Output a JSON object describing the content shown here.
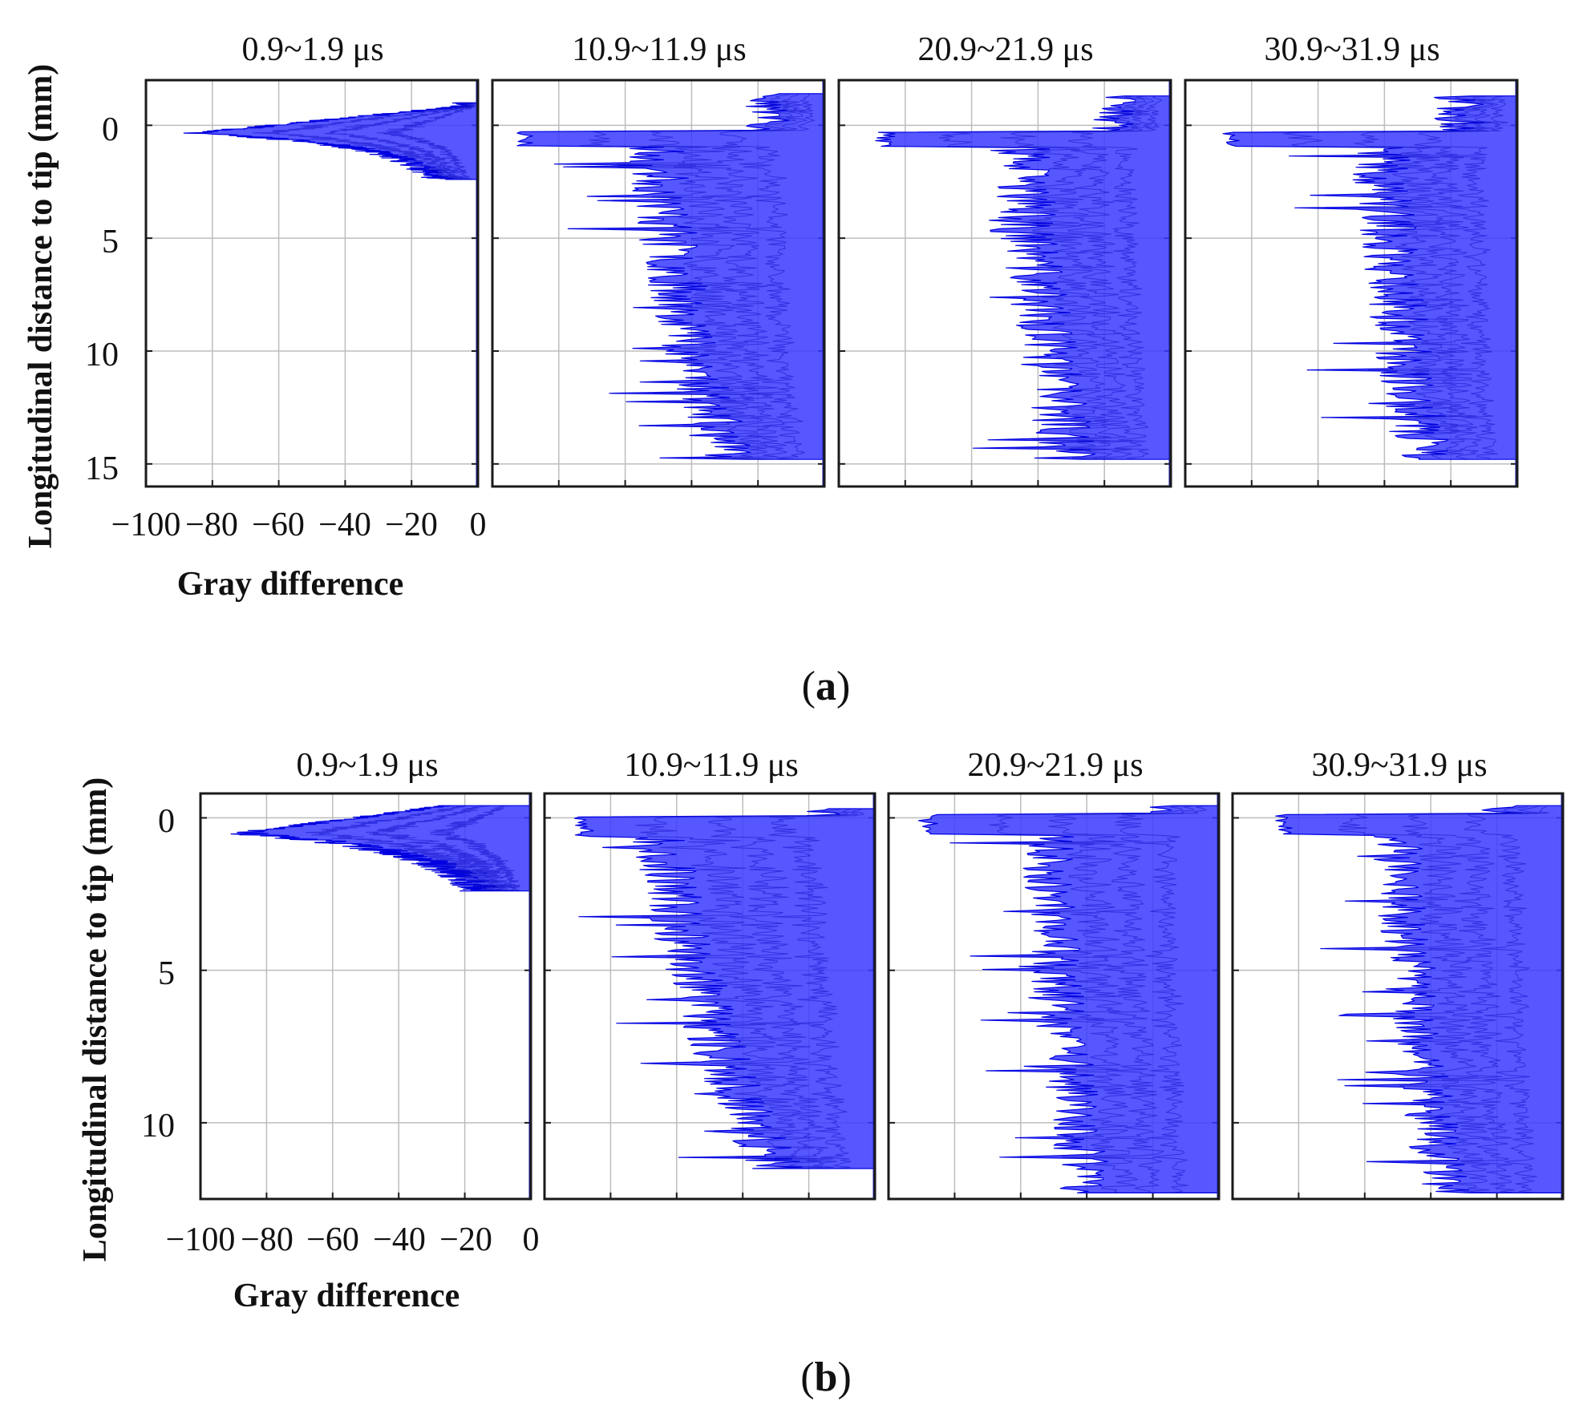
{
  "chart_data": [
    {
      "panel_label": "a",
      "type": "area",
      "orientation": "horizontal-profile",
      "xlabel": "Gray difference",
      "ylabel": "Longitudinal distance to tip (mm)",
      "xlim": [
        -100,
        0
      ],
      "ylim": [
        16,
        -2
      ],
      "x_ticks": [
        -100,
        -80,
        -60,
        -40,
        -20,
        0
      ],
      "x_tick_labels": [
        "−100",
        "−80",
        "−60",
        "−40",
        "−20",
        "0"
      ],
      "y_ticks": [
        0,
        5,
        10,
        15
      ],
      "y_tick_labels": [
        "0",
        "5",
        "10",
        "15"
      ],
      "series": [
        {
          "name": "0.9~1.9 μs",
          "extent_mm": [
            -1.0,
            2.4
          ],
          "peak_mm": 0.35,
          "peak_value": -85,
          "body_value": -24,
          "body_spread": 10,
          "far_value": -18,
          "taper": 1,
          "seed": 11
        },
        {
          "name": "10.9~11.9 μs",
          "extent_mm": [
            -1.4,
            14.8
          ],
          "peak_mm": 0.6,
          "peak_value": -90,
          "body_value": -52,
          "body_spread": 18,
          "far_value": -30,
          "taper": 0,
          "seed": 23
        },
        {
          "name": "20.9~21.9 μs",
          "extent_mm": [
            -1.3,
            14.8
          ],
          "peak_mm": 0.6,
          "peak_value": -86,
          "body_value": -46,
          "body_spread": 18,
          "far_value": -30,
          "taper": 0,
          "seed": 37
        },
        {
          "name": "30.9~31.9 μs",
          "extent_mm": [
            -1.3,
            14.8
          ],
          "peak_mm": 0.6,
          "peak_value": -86,
          "body_value": -42,
          "body_spread": 18,
          "far_value": -28,
          "taper": 0,
          "seed": 41
        }
      ]
    },
    {
      "panel_label": "b",
      "type": "area",
      "orientation": "horizontal-profile",
      "xlabel": "Gray difference",
      "ylabel": "Longitudinal distance to tip (mm)",
      "xlim": [
        -100,
        0
      ],
      "ylim": [
        12.5,
        -0.8
      ],
      "x_ticks": [
        -100,
        -80,
        -60,
        -40,
        -20,
        0
      ],
      "x_tick_labels": [
        "−100",
        "−80",
        "−60",
        "−40",
        "−20",
        "0"
      ],
      "y_ticks": [
        0,
        5,
        10
      ],
      "y_tick_labels": [
        "0",
        "5",
        "10"
      ],
      "series": [
        {
          "name": "0.9~1.9 μs",
          "extent_mm": [
            -0.4,
            2.4
          ],
          "peak_mm": 0.5,
          "peak_value": -88,
          "body_value": -30,
          "body_spread": 14,
          "far_value": -22,
          "taper": 1,
          "seed": 53
        },
        {
          "name": "10.9~11.9 μs",
          "extent_mm": [
            -0.3,
            11.5
          ],
          "peak_mm": 0.3,
          "peak_value": -88,
          "body_value": -65,
          "body_spread": 18,
          "far_value": -30,
          "taper": 0,
          "seed": 67
        },
        {
          "name": "20.9~21.9 μs",
          "extent_mm": [
            -0.4,
            12.3
          ],
          "peak_mm": 0.2,
          "peak_value": -88,
          "body_value": -52,
          "body_spread": 16,
          "far_value": -40,
          "taper": 0,
          "seed": 71
        },
        {
          "name": "30.9~31.9 μs",
          "extent_mm": [
            -0.4,
            12.3
          ],
          "peak_mm": 0.2,
          "peak_value": -85,
          "body_value": -50,
          "body_spread": 16,
          "far_value": -36,
          "taper": 0,
          "seed": 89
        }
      ]
    }
  ]
}
